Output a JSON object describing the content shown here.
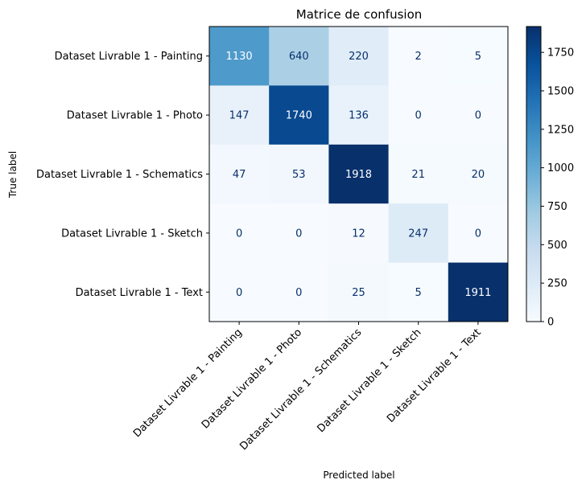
{
  "chart_data": {
    "type": "heatmap",
    "title": "Matrice de confusion",
    "xlabel": "Predicted label",
    "ylabel": "True label",
    "labels": [
      "Dataset Livrable 1 - Painting",
      "Dataset Livrable 1 - Photo",
      "Dataset Livrable 1 - Schematics",
      "Dataset Livrable 1 - Sketch",
      "Dataset Livrable 1 - Text"
    ],
    "matrix": [
      [
        1130,
        640,
        220,
        2,
        5
      ],
      [
        147,
        1740,
        136,
        0,
        0
      ],
      [
        47,
        53,
        1918,
        21,
        20
      ],
      [
        0,
        0,
        12,
        247,
        0
      ],
      [
        0,
        0,
        25,
        5,
        1911
      ]
    ],
    "colormap": "Blues",
    "colorbar": {
      "min": 0,
      "max": 1918,
      "ticks": [
        0,
        250,
        500,
        750,
        1000,
        1250,
        1500,
        1750
      ]
    },
    "text_color_light": "#ffffff",
    "text_color_dark": "#08306b"
  }
}
